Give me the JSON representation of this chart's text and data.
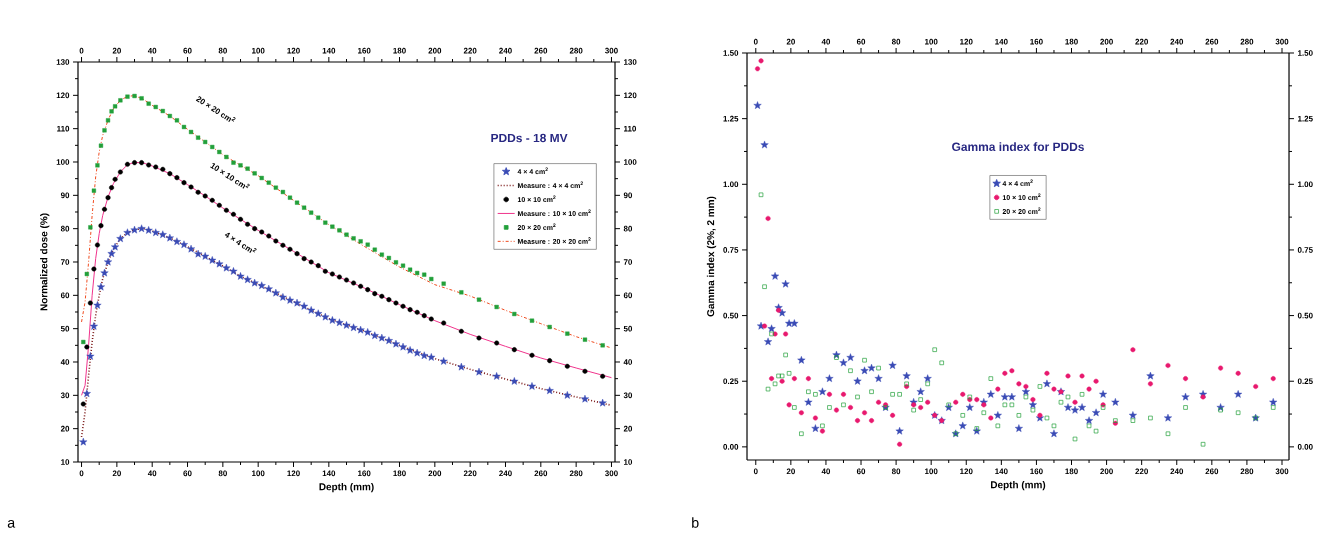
{
  "chart_data": [
    {
      "type": "line",
      "title": "PDDs - 18 MV",
      "xlabel": "Depth (mm)",
      "ylabel": "Normalized dose (%)",
      "xlim": [
        -2,
        302
      ],
      "ylim": [
        10,
        130
      ],
      "x2lim": [
        -2,
        302
      ],
      "y2lim": [
        10,
        130
      ],
      "xticks": [
        0,
        20,
        40,
        60,
        80,
        100,
        120,
        140,
        160,
        180,
        200,
        220,
        240,
        260,
        280,
        300
      ],
      "x2ticks": [
        0,
        20,
        40,
        60,
        80,
        100,
        120,
        140,
        160,
        180,
        200,
        220,
        240,
        260,
        280,
        300
      ],
      "yticks": [
        10,
        20,
        30,
        40,
        50,
        60,
        70,
        80,
        90,
        100,
        110,
        120,
        130
      ],
      "y2ticks": [
        10,
        20,
        30,
        40,
        50,
        60,
        70,
        80,
        90,
        100,
        110,
        120,
        130
      ],
      "legend": "right",
      "x": [
        1,
        3,
        5,
        7,
        9,
        11,
        13,
        15,
        17,
        19,
        22,
        26,
        30,
        34,
        38,
        42,
        46,
        50,
        54,
        58,
        62,
        66,
        70,
        74,
        78,
        82,
        86,
        90,
        94,
        98,
        102,
        106,
        110,
        114,
        118,
        122,
        126,
        130,
        134,
        138,
        142,
        146,
        150,
        154,
        158,
        162,
        166,
        170,
        174,
        178,
        182,
        186,
        190,
        194,
        198,
        205,
        215,
        225,
        235,
        245,
        255,
        265,
        275,
        285,
        295
      ],
      "series": [
        {
          "name": "4 × 4 cm$^{2}$",
          "type": "scatter",
          "marker": "star",
          "color": "#3a4bb5",
          "values": [
            16.0,
            30.5,
            41.7,
            50.7,
            57.0,
            62.5,
            66.7,
            70.0,
            72.5,
            74.5,
            77.0,
            78.8,
            79.6,
            80.0,
            79.5,
            78.8,
            78.2,
            77.2,
            76.1,
            75.2,
            73.9,
            72.4,
            71.7,
            70.5,
            69.4,
            68.2,
            67.2,
            65.7,
            64.7,
            63.7,
            62.9,
            61.9,
            60.7,
            59.4,
            58.5,
            57.7,
            56.7,
            55.5,
            54.5,
            53.5,
            52.5,
            51.8,
            51.0,
            50.3,
            49.6,
            48.9,
            47.9,
            47.2,
            46.4,
            45.4,
            44.5,
            43.5,
            42.7,
            41.9,
            41.4,
            40.2,
            38.5,
            37.0,
            35.7,
            34.2,
            32.7,
            31.4,
            30.0,
            28.9,
            27.7
          ]
        },
        {
          "name": "Measure : 4 × 4 cm$^{2}$",
          "type": "line",
          "line_style": "dotted",
          "color": "#7a1515",
          "x": [
            0,
            2,
            4,
            6,
            8,
            10,
            12,
            15,
            18,
            22,
            26,
            30,
            35,
            40,
            50,
            60,
            70,
            80,
            90,
            100,
            120,
            140,
            160,
            180,
            200,
            220,
            240,
            260,
            280,
            300
          ],
          "values": [
            17.5,
            25,
            36,
            46,
            54,
            60,
            65,
            70,
            73.8,
            77,
            78.8,
            79.7,
            80,
            79.3,
            77.2,
            74.6,
            71.7,
            68.8,
            65.7,
            63.3,
            58.1,
            53,
            49.3,
            45,
            41,
            37.8,
            34.9,
            32,
            29.5,
            27
          ]
        },
        {
          "name": "10 × 10 cm$^{2}$",
          "type": "scatter",
          "marker": "circle",
          "color": "#000000",
          "values": [
            27.4,
            44.5,
            57.7,
            67.9,
            75.1,
            80.9,
            85.8,
            89.3,
            92.3,
            94.8,
            97.0,
            99.3,
            99.8,
            99.8,
            99.1,
            98.5,
            97.8,
            96.5,
            95.3,
            93.8,
            92.5,
            90.9,
            89.8,
            88.5,
            87.0,
            85.5,
            84.3,
            82.8,
            81.3,
            80.0,
            79.0,
            77.8,
            76.3,
            75.0,
            73.8,
            72.5,
            71.0,
            70.0,
            68.9,
            67.2,
            66.4,
            65.5,
            64.6,
            63.7,
            62.7,
            61.7,
            60.5,
            59.7,
            58.7,
            57.7,
            56.7,
            55.7,
            54.9,
            53.9,
            52.9,
            51.7,
            49.2,
            47.2,
            45.7,
            43.7,
            42.0,
            40.4,
            38.7,
            37.2,
            35.7
          ]
        },
        {
          "name": "Measure : 10 × 10 cm$^{2}$",
          "type": "line",
          "line_style": "solid",
          "color": "#f0338c",
          "x": [
            0,
            2,
            4,
            6,
            8,
            10,
            12,
            15,
            18,
            22,
            26,
            30,
            35,
            40,
            50,
            60,
            70,
            80,
            90,
            100,
            120,
            140,
            160,
            180,
            200,
            220,
            240,
            260,
            280,
            300
          ],
          "values": [
            30,
            33,
            45,
            60,
            71,
            78.5,
            84,
            89.5,
            93.5,
            97,
            99.2,
            99.9,
            99.7,
            98.8,
            96.5,
            93.2,
            89.8,
            86.2,
            82.8,
            79.5,
            73.2,
            66.8,
            62.2,
            57.2,
            52.4,
            48.3,
            44.7,
            41.2,
            38.2,
            35.3
          ]
        },
        {
          "name": "20 × 20 cm$^{2}$",
          "type": "scatter",
          "marker": "square",
          "color": "#22a03a",
          "values": [
            46.0,
            66.4,
            80.4,
            91.4,
            99.0,
            104.9,
            109.5,
            112.5,
            115.2,
            116.7,
            118.5,
            119.6,
            119.8,
            119.1,
            117.5,
            116.5,
            115.3,
            113.8,
            112.5,
            110.5,
            109.0,
            107.3,
            106.0,
            104.5,
            103.0,
            101.5,
            99.8,
            99.0,
            98.0,
            96.6,
            95.2,
            93.8,
            92.3,
            91.0,
            89.3,
            87.8,
            86.3,
            84.8,
            83.3,
            81.8,
            80.6,
            79.5,
            78.2,
            77.1,
            76.2,
            75.2,
            73.7,
            72.2,
            71.2,
            69.9,
            68.9,
            67.7,
            66.7,
            66.2,
            64.9,
            63.5,
            60.9,
            58.7,
            56.5,
            54.4,
            52.4,
            50.5,
            48.5,
            46.7,
            45.0
          ]
        },
        {
          "name": "Measure :  20 × 20 cm$^{2}$",
          "type": "line",
          "line_style": "dashdot",
          "color": "#f04a1e",
          "x": [
            0,
            2,
            4,
            6,
            8,
            10,
            12,
            15,
            18,
            22,
            26,
            30,
            35,
            40,
            50,
            60,
            70,
            80,
            90,
            100,
            120,
            140,
            160,
            180,
            200,
            220,
            240,
            260,
            280,
            300
          ],
          "values": [
            52,
            58,
            70,
            84,
            95.5,
            103,
            108,
            112.5,
            116,
            118.5,
            119.7,
            119.9,
            118.8,
            117,
            113.8,
            109.8,
            106,
            102.2,
            99,
            95.9,
            88.5,
            81.2,
            74.7,
            68.5,
            63.2,
            59.8,
            55.5,
            51.5,
            47.6,
            44.2
          ]
        }
      ],
      "annotations": [
        "20 × 20 cm$^{2}$",
        "10 × 10 cm$^{2}$",
        "4 × 4 cm$^{2}$",
        "a"
      ]
    },
    {
      "type": "scatter",
      "title": "Gamma index for PDDs",
      "xlabel": "Depth (mm)",
      "ylabel": "Gamma index (2%, 2 mm)",
      "xlim": [
        -5,
        304
      ],
      "ylim": [
        -0.05,
        1.5
      ],
      "x2lim": [
        -5,
        304
      ],
      "y2lim": [
        -0.05,
        1.5
      ],
      "xticks": [
        0,
        20,
        40,
        60,
        80,
        100,
        120,
        140,
        160,
        180,
        200,
        220,
        240,
        260,
        280,
        300
      ],
      "x2ticks": [
        0,
        20,
        40,
        60,
        80,
        100,
        120,
        140,
        160,
        180,
        200,
        220,
        240,
        260,
        280,
        300
      ],
      "yticks": [
        {
          "value": 0,
          "label": "0.00"
        },
        {
          "value": 0.25,
          "label": "0.25"
        },
        {
          "value": 0.5,
          "label": "0.50"
        },
        {
          "value": 0.75,
          "label": "0.75"
        },
        {
          "value": 1,
          "label": "1.00"
        },
        {
          "value": 1.25,
          "label": "1.25"
        },
        {
          "value": 1.5,
          "label": "1.50"
        }
      ],
      "y2ticks": [
        {
          "value": 0,
          "label": "0.00"
        },
        {
          "value": 0.25,
          "label": "0.25"
        },
        {
          "value": 0.5,
          "label": "0.50"
        },
        {
          "value": 0.75,
          "label": "0.75"
        },
        {
          "value": 1,
          "label": "1.00"
        },
        {
          "value": 1.25,
          "label": "1.25"
        },
        {
          "value": 1.5,
          "label": "1.50"
        }
      ],
      "legend": "top",
      "x": [
        1,
        3,
        5,
        7,
        9,
        11,
        13,
        15,
        17,
        19,
        22,
        26,
        30,
        34,
        38,
        42,
        46,
        50,
        54,
        58,
        62,
        66,
        70,
        74,
        78,
        82,
        86,
        90,
        94,
        98,
        102,
        106,
        110,
        114,
        118,
        122,
        126,
        130,
        134,
        138,
        142,
        146,
        150,
        154,
        158,
        162,
        166,
        170,
        174,
        178,
        182,
        186,
        190,
        194,
        198,
        205,
        215,
        225,
        235,
        245,
        255,
        265,
        275,
        285,
        295
      ],
      "series": [
        {
          "name": "4 × 4 cm$^{2}$",
          "marker": "star",
          "color": "#3a4bb5",
          "values": [
            1.3,
            0.46,
            1.15,
            0.4,
            0.45,
            0.65,
            0.53,
            0.51,
            0.62,
            0.47,
            0.47,
            0.33,
            0.17,
            0.07,
            0.21,
            0.26,
            0.35,
            0.32,
            0.34,
            0.25,
            0.29,
            0.3,
            0.26,
            0.15,
            0.31,
            0.06,
            0.27,
            0.17,
            0.21,
            0.26,
            0.12,
            0.1,
            0.15,
            0.05,
            0.08,
            0.15,
            0.06,
            0.17,
            0.2,
            0.12,
            0.19,
            0.19,
            0.07,
            0.21,
            0.16,
            0.11,
            0.24,
            0.05,
            0.21,
            0.15,
            0.14,
            0.15,
            0.1,
            0.13,
            0.2,
            0.17,
            0.12,
            0.27,
            0.11,
            0.19,
            0.2,
            0.15,
            0.2,
            0.11,
            0.17
          ]
        },
        {
          "name": "10 × 10 cm$^{2}$",
          "marker": "circle",
          "color": "#e8196e",
          "values": [
            1.44,
            1.47,
            0.46,
            0.87,
            0.26,
            0.43,
            0.52,
            0.25,
            0.43,
            0.16,
            0.26,
            0.13,
            0.26,
            0.11,
            0.06,
            0.2,
            0.14,
            0.2,
            0.15,
            0.1,
            0.13,
            0.1,
            0.17,
            0.16,
            0.12,
            0.01,
            0.23,
            0.16,
            0.15,
            0.17,
            0.12,
            0.1,
            null,
            0.17,
            0.2,
            0.18,
            0.18,
            0.16,
            0.11,
            0.22,
            0.28,
            0.29,
            0.24,
            0.23,
            0.18,
            0.12,
            0.28,
            0.22,
            0.21,
            0.27,
            0.17,
            0.27,
            0.22,
            0.25,
            0.16,
            0.09,
            0.37,
            0.24,
            0.31,
            0.26,
            0.19,
            0.3,
            0.28,
            0.23,
            0.26
          ]
        },
        {
          "name": "20 × 20 cm$^{2}$",
          "marker": "square",
          "color": "#22a03a",
          "values": [
            null,
            0.96,
            0.61,
            0.22,
            0.43,
            0.24,
            0.27,
            0.27,
            0.35,
            0.28,
            0.15,
            0.05,
            0.21,
            0.2,
            0.08,
            0.15,
            0.34,
            0.16,
            0.29,
            0.19,
            0.33,
            0.21,
            0.3,
            0.15,
            0.2,
            0.2,
            0.24,
            0.14,
            0.18,
            0.24,
            0.37,
            0.32,
            0.16,
            0.05,
            0.12,
            0.19,
            0.07,
            0.13,
            0.26,
            0.08,
            0.16,
            0.16,
            0.12,
            0.19,
            0.14,
            0.23,
            0.11,
            0.08,
            0.17,
            0.19,
            0.03,
            0.2,
            0.08,
            0.06,
            0.15,
            0.1,
            0.1,
            0.11,
            0.05,
            0.15,
            0.01,
            0.14,
            0.13,
            0.11,
            0.15
          ]
        }
      ],
      "annotations": [
        "b"
      ]
    }
  ]
}
